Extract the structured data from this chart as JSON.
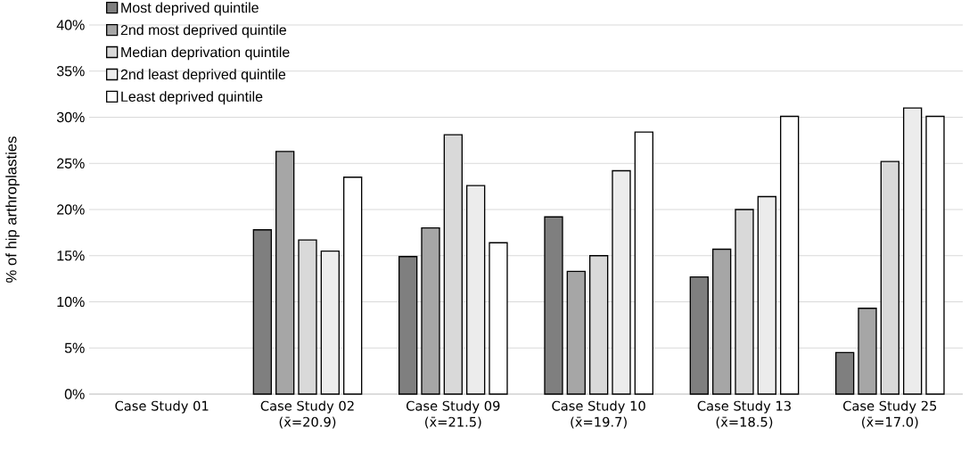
{
  "chart_data": {
    "type": "bar",
    "ylabel": "% of hip arthroplasties",
    "categories": [
      "Case Study 01",
      "Case Study 02 (x̄=20.9)",
      "Case Study 09 (x̄=21.5)",
      "Case Study 10 (x̄=19.7)",
      "Case Study 13 (x̄=18.5)",
      "Case Study 25 (x̄=17.0)"
    ],
    "series": [
      {
        "name": "Most deprived quintile",
        "color": "#7f7f7f",
        "values": [
          null,
          17.8,
          14.9,
          19.2,
          12.7,
          4.5
        ]
      },
      {
        "name": "2nd most deprived quintile",
        "color": "#a6a6a6",
        "values": [
          null,
          26.3,
          18.0,
          13.3,
          15.7,
          9.3
        ]
      },
      {
        "name": "Median deprivation quintile",
        "color": "#d9d9d9",
        "values": [
          null,
          16.7,
          28.1,
          15.0,
          20.0,
          25.2
        ]
      },
      {
        "name": "2nd least deprived quintile",
        "color": "#ececec",
        "values": [
          null,
          15.5,
          22.6,
          24.2,
          21.4,
          31.0
        ]
      },
      {
        "name": "Least deprived quintile",
        "color": "#ffffff",
        "values": [
          null,
          23.5,
          16.4,
          28.4,
          30.1,
          30.1
        ]
      }
    ],
    "ylim": [
      0,
      40
    ],
    "yticks": [
      {
        "value": 0,
        "label": "0%"
      },
      {
        "value": 5,
        "label": "5%"
      },
      {
        "value": 10,
        "label": "10%"
      },
      {
        "value": 15,
        "label": "15%"
      },
      {
        "value": 20,
        "label": "20%"
      },
      {
        "value": 25,
        "label": "25%"
      },
      {
        "value": 30,
        "label": "30%"
      },
      {
        "value": 35,
        "label": "35%"
      },
      {
        "value": 40,
        "label": "40%"
      }
    ],
    "grid": "y",
    "legend": "top left"
  }
}
